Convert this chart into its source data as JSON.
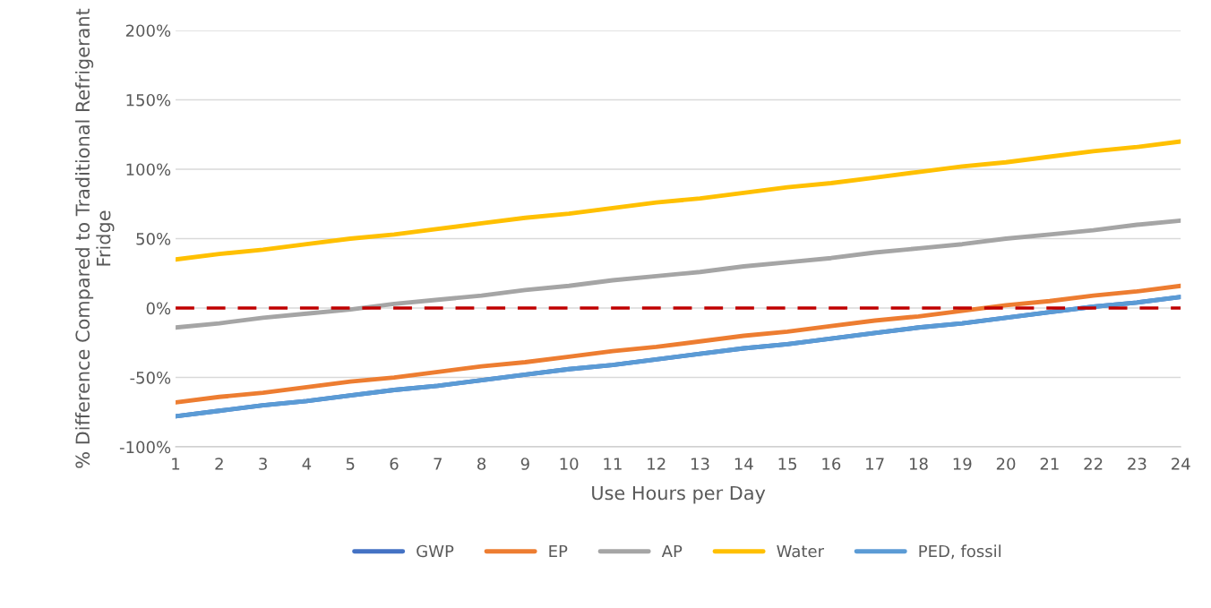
{
  "chart_data": {
    "type": "line",
    "xlabel": "Use Hours per Day",
    "ylabel": "% Difference Compared to Traditional Refrigerant Fridge",
    "categories": [
      "1",
      "2",
      "3",
      "4",
      "5",
      "6",
      "7",
      "8",
      "9",
      "10",
      "11",
      "12",
      "13",
      "14",
      "15",
      "16",
      "17",
      "18",
      "19",
      "20",
      "21",
      "22",
      "23",
      "24"
    ],
    "series": [
      {
        "name": "GWP",
        "color": "#4472c4",
        "values": [
          -78,
          -74,
          -70,
          -67,
          -63,
          -59,
          -56,
          -52,
          -48,
          -44,
          -41,
          -37,
          -33,
          -29,
          -26,
          -22,
          -18,
          -14,
          -11,
          -7,
          -3,
          1,
          4,
          8
        ]
      },
      {
        "name": "EP",
        "color": "#ed7d31",
        "values": [
          -68,
          -64,
          -61,
          -57,
          -53,
          -50,
          -46,
          -42,
          -39,
          -35,
          -31,
          -28,
          -24,
          -20,
          -17,
          -13,
          -9,
          -6,
          -2,
          2,
          5,
          9,
          12,
          16
        ]
      },
      {
        "name": "AP",
        "color": "#a5a5a5",
        "values": [
          -14,
          -11,
          -7,
          -4,
          -1,
          3,
          6,
          9,
          13,
          16,
          20,
          23,
          26,
          30,
          33,
          36,
          40,
          43,
          46,
          50,
          53,
          56,
          60,
          63
        ]
      },
      {
        "name": "Water",
        "color": "#ffc000",
        "values": [
          35,
          39,
          42,
          46,
          50,
          53,
          57,
          61,
          65,
          68,
          72,
          76,
          79,
          83,
          87,
          90,
          94,
          98,
          102,
          105,
          109,
          113,
          116,
          120
        ]
      },
      {
        "name": "PED, fossil",
        "color": "#5b9bd5",
        "values": [
          -78,
          -74,
          -70,
          -67,
          -63,
          -59,
          -56,
          -52,
          -48,
          -44,
          -41,
          -37,
          -33,
          -29,
          -26,
          -22,
          -18,
          -14,
          -11,
          -7,
          -3,
          1,
          4,
          8
        ]
      }
    ],
    "ylim": [
      -100,
      200
    ],
    "yticks": [
      {
        "value": -100,
        "label": "-100%"
      },
      {
        "value": -50,
        "label": "-50%"
      },
      {
        "value": 0,
        "label": "0%"
      },
      {
        "value": 50,
        "label": "50%"
      },
      {
        "value": 100,
        "label": "100%"
      },
      {
        "value": 150,
        "label": "150%"
      },
      {
        "value": 200,
        "label": "200%"
      }
    ],
    "ref_lines": [
      {
        "axis": "y",
        "value": 0,
        "color": "#c00000",
        "line_style": "dashed"
      }
    ],
    "grid": "y",
    "legend": "bottom",
    "line_style": "solid",
    "marker": "none"
  }
}
